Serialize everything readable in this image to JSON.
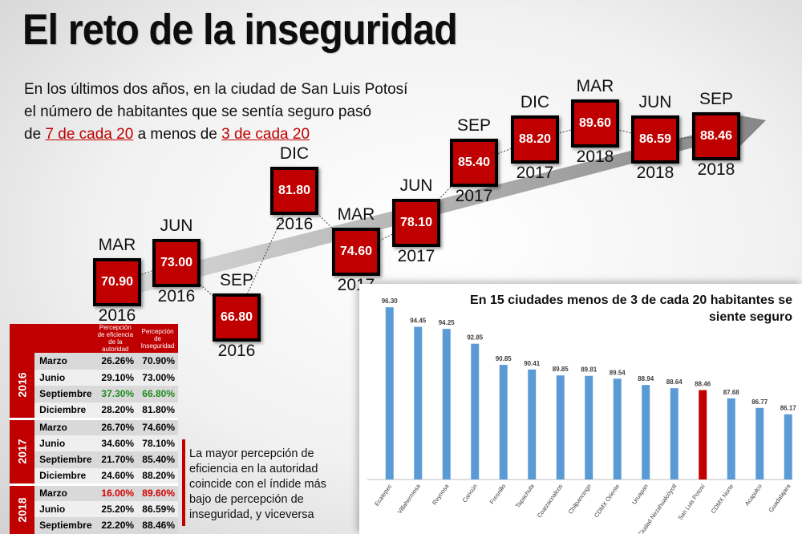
{
  "title": "El reto de la inseguridad",
  "intro": {
    "line1": "En los últimos dos años, en la ciudad de San Luis Potosí",
    "line2": "el número de habitantes que se sentía seguro pasó",
    "line3_pre": "de ",
    "line3_hl1": "7 de cada 20",
    "line3_mid": " a menos de ",
    "line3_hl2": "3 de cada 20"
  },
  "colors": {
    "red": "#c00000",
    "blue": "#5b9bd5",
    "arrow": "#8c8c8c"
  },
  "timeline": [
    {
      "month": "MAR",
      "year": "2016",
      "value": "70.90"
    },
    {
      "month": "JUN",
      "year": "2016",
      "value": "73.00"
    },
    {
      "month": "SEP",
      "year": "2016",
      "value": "66.80"
    },
    {
      "month": "DIC",
      "year": "2016",
      "value": "81.80"
    },
    {
      "month": "MAR",
      "year": "2017",
      "value": "74.60"
    },
    {
      "month": "JUN",
      "year": "2017",
      "value": "78.10"
    },
    {
      "month": "SEP",
      "year": "2017",
      "value": "85.40"
    },
    {
      "month": "DIC",
      "year": "2017",
      "value": "88.20"
    },
    {
      "month": "MAR",
      "year": "2018",
      "value": "89.60"
    },
    {
      "month": "JUN",
      "year": "2018",
      "value": "86.59"
    },
    {
      "month": "SEP",
      "year": "2018",
      "value": "88.46"
    }
  ],
  "table": {
    "col1": "Percepción de eficiencia de la autoridad",
    "col2": "Percepción de Inseguridad",
    "groups": [
      {
        "year": "2016",
        "rows": [
          {
            "month": "Marzo",
            "ef": "26.26%",
            "ins": "70.90%",
            "style": ""
          },
          {
            "month": "Junio",
            "ef": "29.10%",
            "ins": "73.00%",
            "style": ""
          },
          {
            "month": "Septiembre",
            "ef": "37.30%",
            "ins": "66.80%",
            "style": "green"
          },
          {
            "month": "Diciembre",
            "ef": "28.20%",
            "ins": "81.80%",
            "style": ""
          }
        ]
      },
      {
        "year": "2017",
        "rows": [
          {
            "month": "Marzo",
            "ef": "26.70%",
            "ins": "74.60%",
            "style": ""
          },
          {
            "month": "Junio",
            "ef": "34.60%",
            "ins": "78.10%",
            "style": ""
          },
          {
            "month": "Septiembre",
            "ef": "21.70%",
            "ins": "85.40%",
            "style": ""
          },
          {
            "month": "Diciembre",
            "ef": "24.60%",
            "ins": "88.20%",
            "style": ""
          }
        ]
      },
      {
        "year": "2018",
        "rows": [
          {
            "month": "Marzo",
            "ef": "16.00%",
            "ins": "89.60%",
            "style": "red"
          },
          {
            "month": "Junio",
            "ef": "25.20%",
            "ins": "86.59%",
            "style": ""
          },
          {
            "month": "Septiembre",
            "ef": "22.20%",
            "ins": "88.46%",
            "style": ""
          }
        ]
      }
    ]
  },
  "note": "La mayor percepción de eficiencia en la autoridad coincide con el índide más bajo de percepción de inseguridad, y viceversa",
  "chart_data": {
    "type": "bar",
    "title": "En 15 ciudades menos de 3 de cada 20 habitantes se siente seguro",
    "categories": [
      "Ecatepec",
      "Villahermosa",
      "Reynosa",
      "Cancún",
      "Fresnillo",
      "Tapachula",
      "Coatzacoalcos",
      "Chilpancingo",
      "CDMX Oriente",
      "Uruapan",
      "Ciudad Nezahualcóyotl",
      "San Luis Potosí",
      "CDMX Norte",
      "Acapulco",
      "Guadalajara"
    ],
    "values": [
      96.3,
      94.45,
      94.25,
      92.85,
      90.85,
      90.41,
      89.85,
      89.81,
      89.54,
      88.94,
      88.64,
      88.46,
      87.68,
      86.77,
      86.17
    ],
    "value_labels": [
      "96.30",
      "94.45",
      "94.25",
      "92.85",
      "90.85",
      "90.41",
      "89.85",
      "89.81",
      "89.54",
      "88.94",
      "88.64",
      "88.46",
      "87.68",
      "86.77",
      "86.17"
    ],
    "highlight": "San Luis Potosí",
    "xlabel": "",
    "ylabel": "",
    "ylim": [
      80,
      97
    ],
    "grid": false
  }
}
